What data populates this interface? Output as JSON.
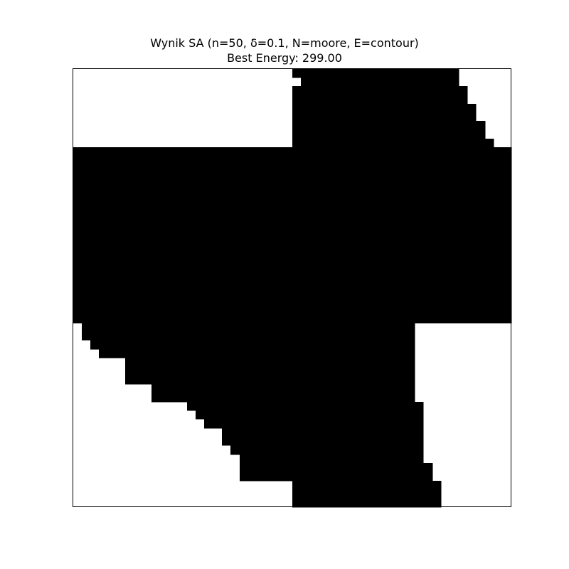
{
  "chart_data": {
    "type": "heatmap",
    "title": "Wynik SA (n=50, δ=0.1, N=moore, E=contour)",
    "subtitle": "Best Energy: 299.00",
    "grid_size": 50,
    "colors": {
      "on": "#000000",
      "off": "#ffffff",
      "frame": "#000000"
    },
    "axes_ticks": false,
    "rows_filled_ranges": [
      [
        [
          25,
          43
        ]
      ],
      [
        [
          26,
          43
        ]
      ],
      [
        [
          25,
          44
        ]
      ],
      [
        [
          25,
          44
        ]
      ],
      [
        [
          25,
          45
        ]
      ],
      [
        [
          25,
          45
        ]
      ],
      [
        [
          25,
          46
        ]
      ],
      [
        [
          25,
          46
        ]
      ],
      [
        [
          25,
          47
        ]
      ],
      [
        [
          0,
          49
        ]
      ],
      [
        [
          0,
          49
        ]
      ],
      [
        [
          0,
          49
        ]
      ],
      [
        [
          0,
          49
        ]
      ],
      [
        [
          0,
          49
        ]
      ],
      [
        [
          0,
          49
        ]
      ],
      [
        [
          0,
          49
        ]
      ],
      [
        [
          0,
          49
        ]
      ],
      [
        [
          0,
          49
        ]
      ],
      [
        [
          0,
          49
        ]
      ],
      [
        [
          0,
          49
        ]
      ],
      [
        [
          0,
          49
        ]
      ],
      [
        [
          0,
          49
        ]
      ],
      [
        [
          0,
          49
        ]
      ],
      [
        [
          0,
          49
        ]
      ],
      [
        [
          0,
          49
        ]
      ],
      [
        [
          0,
          49
        ]
      ],
      [
        [
          0,
          49
        ]
      ],
      [
        [
          0,
          49
        ]
      ],
      [
        [
          0,
          49
        ]
      ],
      [
        [
          1,
          38
        ]
      ],
      [
        [
          1,
          38
        ]
      ],
      [
        [
          2,
          38
        ]
      ],
      [
        [
          3,
          38
        ]
      ],
      [
        [
          6,
          38
        ]
      ],
      [
        [
          6,
          38
        ]
      ],
      [
        [
          6,
          38
        ]
      ],
      [
        [
          9,
          38
        ]
      ],
      [
        [
          9,
          38
        ]
      ],
      [
        [
          13,
          39
        ]
      ],
      [
        [
          14,
          39
        ]
      ],
      [
        [
          15,
          39
        ]
      ],
      [
        [
          17,
          39
        ]
      ],
      [
        [
          17,
          39
        ]
      ],
      [
        [
          18,
          39
        ]
      ],
      [
        [
          19,
          39
        ]
      ],
      [
        [
          19,
          40
        ]
      ],
      [
        [
          19,
          40
        ]
      ],
      [
        [
          25,
          41
        ]
      ],
      [
        [
          25,
          41
        ]
      ],
      [
        [
          25,
          41
        ]
      ]
    ]
  }
}
